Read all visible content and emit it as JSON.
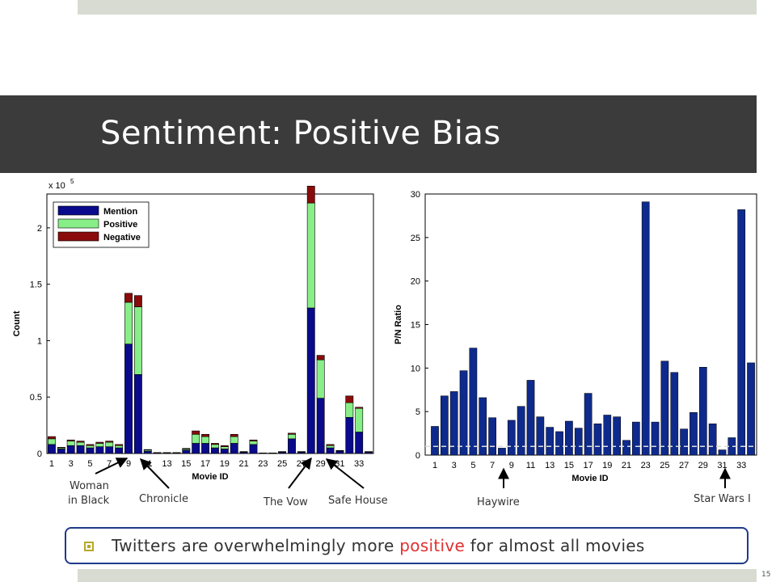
{
  "title": "Sentiment: Positive Bias",
  "bullet_before": "Twitters are overwhelmingly more ",
  "bullet_highlight": "positive",
  "bullet_after": " for almost all movies",
  "page_number": "15",
  "annotations": {
    "woman1": "Woman",
    "woman2": "in Black",
    "chronicle": "Chronicle",
    "vow": "The Vow",
    "safehouse": "Safe House",
    "haywire": "Haywire",
    "starwars": "Star Wars I"
  },
  "colors": {
    "mention": "#0a0a8c",
    "positive": "#88ee88",
    "negative": "#8b0a0a",
    "ratio_bar": "#0e2a8c",
    "highlight": "#e03030"
  },
  "chart_data": [
    {
      "type": "bar",
      "stacked": true,
      "xlabel": "Movie ID",
      "ylabel": "Count",
      "exponent_label": "x 10",
      "exponent": "5",
      "ylim": [
        0,
        2.3
      ],
      "yticks": [
        "0",
        "0.5",
        "1",
        "1.5",
        "2"
      ],
      "ytick_values": [
        0,
        0.5,
        1,
        1.5,
        2
      ],
      "xticks": [
        "1",
        "3",
        "5",
        "7",
        "9",
        "11",
        "13",
        "15",
        "17",
        "19",
        "21",
        "23",
        "25",
        "27",
        "29",
        "31",
        "33"
      ],
      "legend_position": "top-left",
      "categories": [
        1,
        2,
        3,
        4,
        5,
        6,
        7,
        8,
        9,
        10,
        11,
        12,
        13,
        14,
        15,
        16,
        17,
        18,
        19,
        20,
        21,
        22,
        23,
        24,
        25,
        26,
        27,
        28,
        29,
        30,
        31,
        32,
        33,
        34
      ],
      "series": [
        {
          "name": "Mention",
          "values": [
            0.08,
            0.04,
            0.07,
            0.07,
            0.05,
            0.06,
            0.06,
            0.05,
            0.97,
            0.7,
            0.02,
            0.005,
            0.005,
            0.005,
            0.03,
            0.09,
            0.09,
            0.05,
            0.04,
            0.09,
            0.01,
            0.08,
            0.003,
            0.003,
            0.01,
            0.13,
            0.01,
            1.29,
            0.49,
            0.05,
            0.02,
            0.32,
            0.19,
            0.01
          ]
        },
        {
          "name": "Positive",
          "values": [
            0.05,
            0.01,
            0.04,
            0.03,
            0.02,
            0.03,
            0.04,
            0.02,
            0.37,
            0.6,
            0.01,
            0.002,
            0.002,
            0.002,
            0.01,
            0.08,
            0.06,
            0.03,
            0.02,
            0.06,
            0.005,
            0.03,
            0.001,
            0.001,
            0.005,
            0.04,
            0.005,
            0.93,
            0.34,
            0.02,
            0.005,
            0.13,
            0.21,
            0.005
          ]
        },
        {
          "name": "Negative",
          "values": [
            0.02,
            0.005,
            0.01,
            0.01,
            0.01,
            0.01,
            0.01,
            0.01,
            0.08,
            0.1,
            0.005,
            0.001,
            0.001,
            0.001,
            0.005,
            0.03,
            0.02,
            0.01,
            0.01,
            0.02,
            0.002,
            0.01,
            0.001,
            0.001,
            0.002,
            0.01,
            0.002,
            0.15,
            0.04,
            0.01,
            0.002,
            0.06,
            0.01,
            0.002
          ]
        }
      ]
    },
    {
      "type": "bar",
      "xlabel": "Movie ID",
      "ylabel": "P/N Ratio",
      "ylim": [
        0,
        30
      ],
      "yticks": [
        "0",
        "5",
        "10",
        "15",
        "20",
        "25",
        "30"
      ],
      "ytick_values": [
        0,
        5,
        10,
        15,
        20,
        25,
        30
      ],
      "xticks": [
        "1",
        "3",
        "5",
        "7",
        "9",
        "11",
        "13",
        "15",
        "17",
        "19",
        "21",
        "23",
        "25",
        "27",
        "29",
        "31",
        "33"
      ],
      "reference_line": 1,
      "categories": [
        1,
        2,
        3,
        4,
        5,
        6,
        7,
        8,
        9,
        10,
        11,
        12,
        13,
        14,
        15,
        16,
        17,
        18,
        19,
        20,
        21,
        22,
        23,
        24,
        25,
        26,
        27,
        28,
        29,
        30,
        31,
        32,
        33,
        34
      ],
      "values": [
        3.3,
        6.8,
        7.3,
        9.7,
        12.3,
        6.6,
        4.3,
        0.8,
        4.0,
        5.6,
        8.6,
        4.4,
        3.2,
        2.7,
        3.9,
        3.1,
        7.1,
        3.6,
        4.6,
        4.4,
        1.7,
        3.8,
        29.1,
        3.8,
        10.8,
        9.5,
        3.0,
        4.9,
        10.1,
        3.6,
        0.6,
        2.0,
        28.2,
        10.6
      ]
    }
  ]
}
